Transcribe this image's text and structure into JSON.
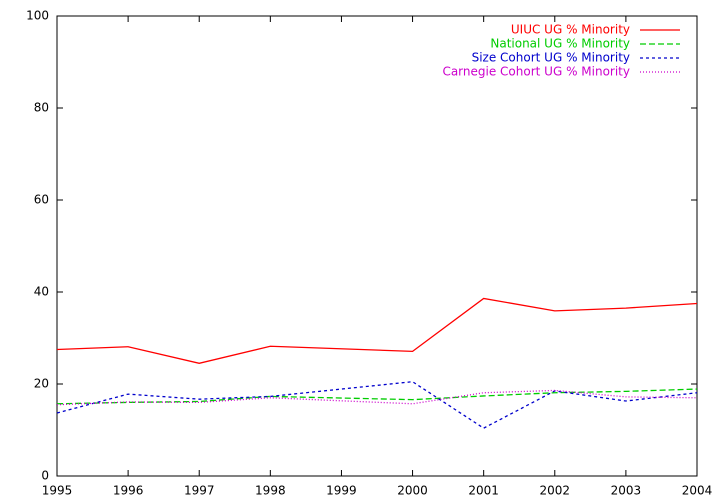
{
  "chart_data": {
    "type": "line",
    "x": [
      1995,
      1996,
      1997,
      1998,
      2000,
      2001,
      2002,
      2003,
      2004
    ],
    "series": [
      {
        "name": "UIUC UG % Minority",
        "color": "#ff0000",
        "values": [
          27.5,
          28.1,
          24.5,
          28.2,
          27.1,
          38.6,
          35.9,
          36.5,
          37.5
        ]
      },
      {
        "name": "National UG % Minority",
        "color": "#00cc00",
        "values": [
          15.7,
          16.0,
          16.2,
          17.3,
          16.6,
          17.4,
          18.1,
          18.4,
          18.9
        ]
      },
      {
        "name": "Size Cohort UG % Minority",
        "color": "#0000cc",
        "values": [
          13.7,
          17.8,
          16.7,
          17.3,
          20.5,
          10.4,
          18.5,
          16.3,
          18.1
        ]
      },
      {
        "name": "Carnegie Cohort UG % Minority",
        "color": "#cc00cc",
        "values": [
          15.5,
          16.1,
          16.0,
          17.0,
          15.7,
          18.1,
          18.6,
          17.2,
          17.0
        ]
      }
    ],
    "xlim": [
      1995,
      2004
    ],
    "xticks": [
      1995,
      1996,
      1997,
      1998,
      1999,
      2000,
      2001,
      2002,
      2003,
      2004
    ],
    "ylim": [
      0,
      100
    ],
    "yticks": [
      0,
      20,
      40,
      60,
      80,
      100
    ],
    "legend": "top-right"
  }
}
